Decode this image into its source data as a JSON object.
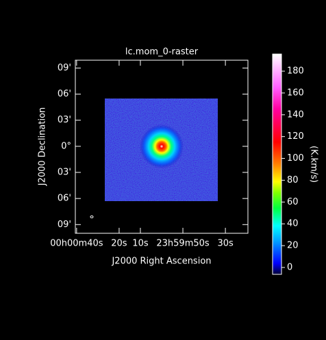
{
  "chart_data": {
    "type": "image",
    "title": "lc.mom_0-raster",
    "x_label": "J2000 Right Ascension",
    "y_label": "J2000 Declination",
    "colorbar_label": "(K.km/s)",
    "xlim": [
      40.6,
      -40.6
    ],
    "xticks": [
      {
        "value": 40,
        "label": "00h00m40s"
      },
      {
        "value": 20,
        "label": "20s"
      },
      {
        "value": 10,
        "label": "10s"
      },
      {
        "value": -10,
        "label": "23h59m50s"
      },
      {
        "value": -30,
        "label": "30s"
      }
    ],
    "ylim": [
      -10,
      9.9
    ],
    "yticks": [
      {
        "value": 9,
        "label": "09'"
      },
      {
        "value": 6,
        "label": "06'"
      },
      {
        "value": 3,
        "label": "03'"
      },
      {
        "value": 0,
        "label": "0°"
      },
      {
        "value": -3,
        "label": "03'"
      },
      {
        "value": -6,
        "label": "06'"
      },
      {
        "value": -9,
        "label": "09'"
      }
    ],
    "clim": [
      -6.3,
      195.7
    ],
    "cticks": [
      0,
      20,
      40,
      60,
      80,
      100,
      120,
      140,
      160,
      180
    ]
  }
}
